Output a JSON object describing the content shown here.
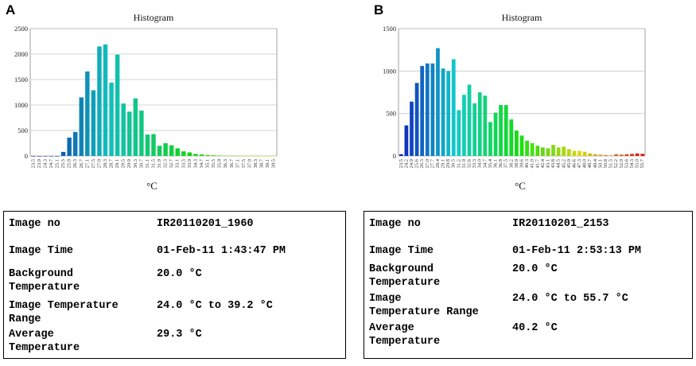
{
  "panels": [
    {
      "letter": "A",
      "info": {
        "image_no_label": "Image no",
        "image_no": "IR20110201_1960",
        "image_time_label": "Image Time",
        "image_time": "01-Feb-11 1:43:47 PM",
        "background_label": "Background\nTemperature",
        "background": "20.0 °C",
        "range_label": "Image Temperature\nRange",
        "range": "24.0 °C to 39.2 °C",
        "average_label": "Average\nTemperature",
        "average": "29.3 °C"
      }
    },
    {
      "letter": "B",
      "info": {
        "image_no_label": "Image no",
        "image_no": "IR20110201_2153",
        "image_time_label": "Image Time",
        "image_time": "01-Feb-11 2:53:13 PM",
        "background_label": "Background\nTemperature",
        "background": "20.0 °C",
        "range_label": "Image\nTemperature Range",
        "range": "24.0 °C to 55.7 °C",
        "average_label": "Average\nTemperature",
        "average": "40.2 °C"
      }
    }
  ],
  "chart_data": [
    {
      "type": "bar",
      "title": "Histogram",
      "xlabel": "°C",
      "ylabel": "",
      "ylim": [
        0,
        2500
      ],
      "yticks": [
        0,
        500,
        1000,
        1500,
        2000,
        2500
      ],
      "grid": true,
      "categories": [
        "23.5",
        "23.9",
        "24.3",
        "24.7",
        "25.1",
        "25.5",
        "25.9",
        "26.3",
        "26.7",
        "27.1",
        "27.5",
        "27.9",
        "28.3",
        "28.7",
        "29.1",
        "29.5",
        "29.9",
        "30.3",
        "30.7",
        "31.1",
        "31.5",
        "31.9",
        "32.3",
        "32.7",
        "33.1",
        "33.5",
        "33.9",
        "34.3",
        "34.7",
        "35.1",
        "35.5",
        "35.9",
        "36.3",
        "36.7",
        "37.1",
        "37.5",
        "37.9",
        "38.3",
        "38.7",
        "39.1",
        "39.5"
      ],
      "values": [
        0,
        0,
        0,
        0,
        0,
        80,
        360,
        470,
        1150,
        1660,
        1290,
        2150,
        2190,
        1440,
        1990,
        1030,
        870,
        1130,
        890,
        420,
        430,
        200,
        250,
        210,
        150,
        90,
        70,
        40,
        30,
        20,
        15,
        10,
        8,
        5,
        4,
        3,
        2,
        1,
        1,
        0,
        0
      ]
    },
    {
      "type": "bar",
      "title": "Histogram",
      "xlabel": "°C",
      "ylabel": "",
      "ylim": [
        0,
        1500
      ],
      "yticks": [
        0,
        500,
        1000,
        1500
      ],
      "grid": true,
      "categories": [
        "23.5",
        "24.2",
        "24.9",
        "25.6",
        "26.3",
        "27.0",
        "27.7",
        "28.4",
        "29.1",
        "29.8",
        "30.5",
        "31.2",
        "31.9",
        "32.6",
        "33.3",
        "34.0",
        "34.7",
        "35.4",
        "36.1",
        "36.8",
        "37.5",
        "38.2",
        "38.9",
        "39.6",
        "40.3",
        "41.0",
        "41.7",
        "42.4",
        "43.1",
        "43.8",
        "44.5",
        "45.2",
        "45.9",
        "46.6",
        "47.3",
        "48.0",
        "48.7",
        "49.4",
        "50.1",
        "50.8",
        "51.5",
        "52.2",
        "52.9",
        "53.6",
        "54.3",
        "55.0",
        "55.7"
      ],
      "values": [
        20,
        360,
        640,
        860,
        1060,
        1090,
        1090,
        1270,
        1030,
        1000,
        1140,
        540,
        720,
        840,
        620,
        750,
        710,
        400,
        510,
        600,
        600,
        430,
        300,
        240,
        180,
        150,
        120,
        100,
        90,
        130,
        100,
        110,
        80,
        60,
        60,
        50,
        30,
        20,
        15,
        10,
        5,
        20,
        15,
        20,
        25,
        30,
        25
      ]
    }
  ]
}
